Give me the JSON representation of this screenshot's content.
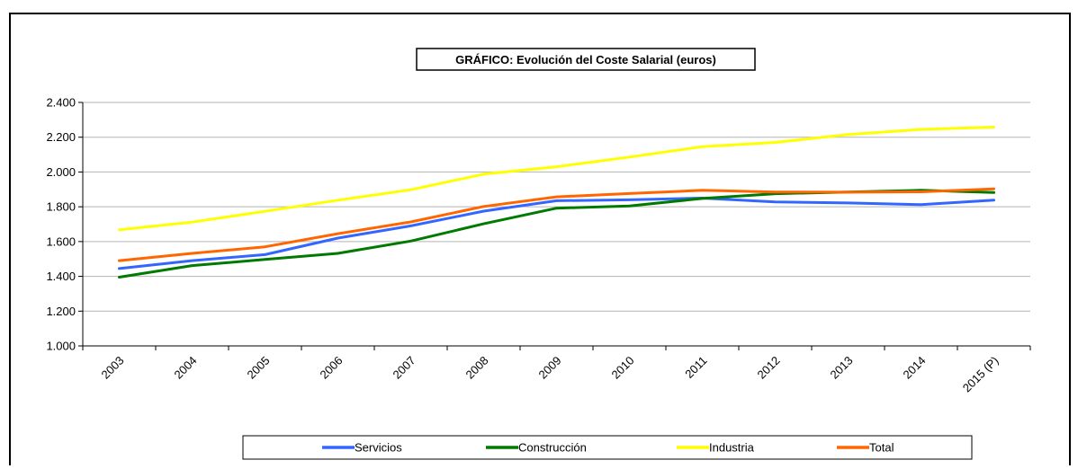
{
  "chart_data": {
    "type": "line",
    "title": "GRÁFICO: Evolución del Coste Salarial (euros)",
    "xlabel": "",
    "ylabel": "",
    "categories": [
      "2003",
      "2004",
      "2005",
      "2006",
      "2007",
      "2008",
      "2009",
      "2010",
      "2011",
      "2012",
      "2013",
      "2014",
      "2015 (P)"
    ],
    "ylim": [
      1000,
      2400
    ],
    "yticks": [
      1000,
      1200,
      1400,
      1600,
      1800,
      2000,
      2200,
      2400
    ],
    "ytick_labels": [
      "1.000",
      "1.200",
      "1.400",
      "1.600",
      "1.800",
      "2.000",
      "2.200",
      "2.400"
    ],
    "grid": true,
    "legend_position": "bottom",
    "series": [
      {
        "name": "Servicios",
        "color": "#3366ff",
        "values": [
          1445,
          1490,
          1525,
          1620,
          1690,
          1775,
          1835,
          1840,
          1850,
          1828,
          1822,
          1812,
          1838
        ]
      },
      {
        "name": "Construcción",
        "color": "#007a00",
        "values": [
          1395,
          1462,
          1497,
          1532,
          1603,
          1702,
          1792,
          1805,
          1848,
          1875,
          1885,
          1895,
          1882
        ]
      },
      {
        "name": "Industria",
        "color": "#ffff00",
        "values": [
          1668,
          1712,
          1774,
          1838,
          1898,
          1988,
          2030,
          2086,
          2146,
          2170,
          2215,
          2245,
          2258
        ]
      },
      {
        "name": "Total",
        "color": "#ff6600",
        "values": [
          1490,
          1532,
          1570,
          1645,
          1713,
          1802,
          1857,
          1876,
          1895,
          1885,
          1884,
          1886,
          1903
        ]
      }
    ]
  }
}
